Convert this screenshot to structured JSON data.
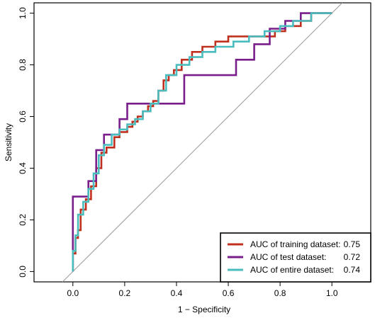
{
  "chart_data": {
    "type": "line",
    "xlabel": "1 − Specificity",
    "ylabel": "Sensitivity",
    "xlim": [
      -0.15,
      1.15
    ],
    "ylim": [
      -0.04,
      1.04
    ],
    "x_ticks": [
      "0.0",
      "0.2",
      "0.4",
      "0.6",
      "0.8",
      "1.0"
    ],
    "y_ticks": [
      "0.0",
      "0.2",
      "0.4",
      "0.6",
      "0.8",
      "1.0"
    ],
    "x_tick_values": [
      0.0,
      0.2,
      0.4,
      0.6,
      0.8,
      1.0
    ],
    "y_tick_values": [
      0.0,
      0.2,
      0.4,
      0.6,
      0.8,
      1.0
    ],
    "legend_position": "bottom-right",
    "reference_line": {
      "x": [
        -0.04,
        1.04
      ],
      "y": [
        -0.04,
        1.04
      ],
      "color": "#999999"
    },
    "series": [
      {
        "name": "AUC of training dataset:",
        "auc": "0.75",
        "color": "#C0301F",
        "x": [
          0.0,
          0.0,
          0.01,
          0.01,
          0.02,
          0.02,
          0.03,
          0.03,
          0.05,
          0.05,
          0.07,
          0.07,
          0.09,
          0.09,
          0.11,
          0.11,
          0.13,
          0.13,
          0.16,
          0.16,
          0.18,
          0.18,
          0.21,
          0.21,
          0.23,
          0.23,
          0.25,
          0.25,
          0.27,
          0.27,
          0.29,
          0.29,
          0.31,
          0.31,
          0.33,
          0.33,
          0.35,
          0.35,
          0.37,
          0.37,
          0.39,
          0.39,
          0.42,
          0.42,
          0.46,
          0.46,
          0.5,
          0.5,
          0.55,
          0.55,
          0.6,
          0.6,
          0.78,
          0.78,
          0.82,
          0.82,
          0.88,
          0.88,
          0.92,
          0.92,
          1.0
        ],
        "y": [
          0.0,
          0.07,
          0.07,
          0.13,
          0.13,
          0.16,
          0.16,
          0.24,
          0.24,
          0.28,
          0.28,
          0.33,
          0.33,
          0.4,
          0.4,
          0.46,
          0.46,
          0.48,
          0.48,
          0.52,
          0.52,
          0.54,
          0.54,
          0.56,
          0.56,
          0.58,
          0.58,
          0.6,
          0.6,
          0.62,
          0.62,
          0.64,
          0.64,
          0.66,
          0.66,
          0.7,
          0.7,
          0.74,
          0.74,
          0.76,
          0.76,
          0.78,
          0.78,
          0.82,
          0.82,
          0.85,
          0.85,
          0.87,
          0.87,
          0.89,
          0.89,
          0.91,
          0.91,
          0.93,
          0.93,
          0.95,
          0.95,
          0.97,
          0.97,
          1.0,
          1.0
        ]
      },
      {
        "name": "AUC of test dataset:",
        "auc": "0.72",
        "color": "#7A1E8C",
        "x": [
          0.0,
          0.0,
          0.06,
          0.06,
          0.09,
          0.09,
          0.12,
          0.12,
          0.18,
          0.18,
          0.21,
          0.21,
          0.24,
          0.24,
          0.43,
          0.43,
          0.63,
          0.63,
          0.7,
          0.7,
          0.76,
          0.76,
          0.82,
          0.82,
          0.88,
          0.88,
          1.0
        ],
        "y": [
          0.0,
          0.29,
          0.29,
          0.35,
          0.35,
          0.47,
          0.47,
          0.53,
          0.53,
          0.59,
          0.59,
          0.65,
          0.65,
          0.65,
          0.65,
          0.76,
          0.76,
          0.82,
          0.82,
          0.88,
          0.88,
          0.94,
          0.94,
          0.97,
          0.97,
          1.0,
          1.0
        ]
      },
      {
        "name": "AUC of entire dataset:",
        "auc": "0.74",
        "color": "#4BBCBD",
        "x": [
          0.0,
          0.0,
          0.01,
          0.01,
          0.02,
          0.02,
          0.04,
          0.04,
          0.06,
          0.06,
          0.08,
          0.08,
          0.1,
          0.1,
          0.12,
          0.12,
          0.15,
          0.15,
          0.18,
          0.18,
          0.21,
          0.21,
          0.24,
          0.24,
          0.27,
          0.27,
          0.3,
          0.3,
          0.33,
          0.33,
          0.36,
          0.36,
          0.4,
          0.4,
          0.45,
          0.45,
          0.5,
          0.5,
          0.55,
          0.55,
          0.62,
          0.62,
          0.68,
          0.68,
          0.74,
          0.74,
          0.8,
          0.8,
          0.85,
          0.85,
          0.92,
          0.92,
          1.0
        ],
        "y": [
          0.0,
          0.08,
          0.08,
          0.14,
          0.14,
          0.22,
          0.22,
          0.27,
          0.27,
          0.32,
          0.32,
          0.38,
          0.38,
          0.45,
          0.45,
          0.49,
          0.49,
          0.53,
          0.53,
          0.55,
          0.55,
          0.57,
          0.57,
          0.59,
          0.59,
          0.62,
          0.62,
          0.65,
          0.65,
          0.7,
          0.7,
          0.76,
          0.76,
          0.8,
          0.8,
          0.83,
          0.83,
          0.85,
          0.85,
          0.87,
          0.87,
          0.89,
          0.89,
          0.91,
          0.91,
          0.93,
          0.93,
          0.95,
          0.95,
          0.97,
          0.97,
          1.0,
          1.0
        ]
      }
    ]
  }
}
